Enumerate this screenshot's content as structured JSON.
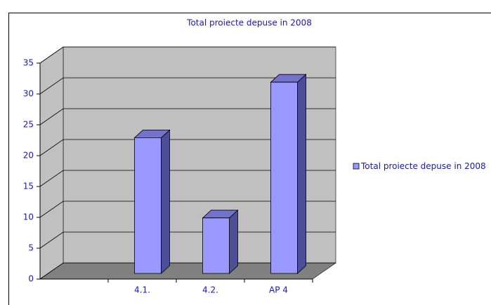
{
  "chart_data": {
    "type": "bar",
    "title": "Total proiecte depuse in 2008",
    "categories": [
      "4.1.",
      "4.2.",
      "AP 4"
    ],
    "series": [
      {
        "name": "Total proiecte depuse in 2008",
        "color": "#9999ff",
        "values": [
          22,
          9,
          31
        ]
      }
    ],
    "ylim": [
      0,
      35
    ],
    "yticks": [
      0,
      5,
      10,
      15,
      20,
      25,
      30,
      35
    ],
    "grid": true,
    "legend": "right"
  }
}
